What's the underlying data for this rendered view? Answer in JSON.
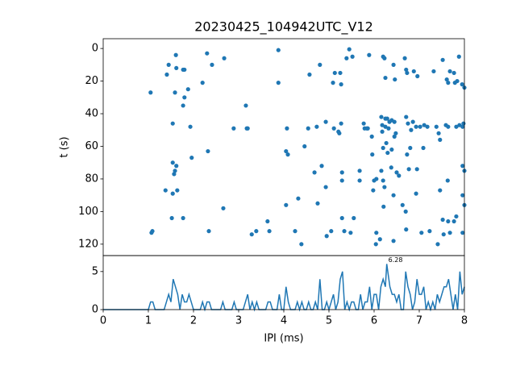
{
  "chart_data": [
    {
      "type": "scatter",
      "title": "20230425_104942UTC_V12",
      "ylabel": "t (s)",
      "color": "#1f77b4",
      "xlim": [
        0,
        8
      ],
      "ylim": [
        -6,
        127
      ],
      "y_inverted": true,
      "yticks": [
        0,
        20,
        40,
        60,
        80,
        100,
        120
      ],
      "x": [
        1.05,
        1.09,
        1.07,
        1.45,
        1.41,
        1.61,
        1.62,
        1.77,
        1.8,
        1.59,
        1.88,
        1.8,
        1.77,
        1.54,
        1.93,
        1.54,
        1.62,
        1.59,
        1.57,
        1.96,
        1.38,
        1.54,
        1.64,
        1.52,
        1.77,
        2.2,
        2.3,
        2.41,
        2.68,
        2.32,
        2.34,
        2.66,
        2.89,
        3.16,
        3.18,
        3.2,
        3.29,
        3.39,
        3.64,
        3.68,
        3.88,
        3.88,
        4.07,
        4.05,
        4.09,
        4.05,
        4.32,
        4.25,
        4.39,
        4.46,
        4.54,
        4.57,
        4.68,
        4.8,
        4.73,
        4.93,
        4.84,
        4.93,
        4.75,
        4.95,
        5.05,
        5.09,
        5.13,
        5.25,
        5.27,
        5.11,
        5.21,
        5.27,
        5.23,
        5.29,
        5.29,
        5.29,
        5.34,
        5.45,
        5.39,
        5.52,
        5.55,
        5.68,
        5.68,
        5.48,
        5.77,
        5.79,
        5.84,
        5.86,
        5.89,
        5.96,
        6.0,
        6.05,
        5.95,
        5.98,
        6.05,
        6.13,
        6.04,
        6.2,
        6.23,
        6.25,
        6.16,
        6.25,
        6.18,
        6.18,
        6.29,
        6.34,
        6.25,
        6.32,
        6.2,
        6.27,
        6.3,
        6.39,
        6.2,
        6.23,
        6.21,
        6.16,
        6.38,
        6.43,
        6.46,
        6.43,
        6.39,
        6.45,
        6.48,
        6.45,
        6.5,
        6.55,
        6.43,
        6.63,
        6.7,
        6.71,
        6.68,
        6.71,
        6.73,
        6.71,
        6.75,
        6.82,
        6.8,
        6.73,
        6.77,
        6.88,
        6.96,
        6.86,
        6.93,
        6.95,
        6.93,
        7.02,
        7.09,
        7.05,
        7.11,
        7.18,
        7.23,
        7.32,
        7.38,
        7.43,
        7.46,
        7.46,
        7.52,
        7.41,
        7.52,
        7.61,
        7.59,
        7.64,
        7.64,
        7.63,
        7.64,
        7.54,
        7.68,
        7.68,
        7.77,
        7.84,
        7.79,
        7.95,
        8.0,
        7.88,
        7.89,
        7.96,
        7.98,
        7.96,
        8.0,
        7.96,
        8.0,
        7.82,
        7.96,
        7.77,
        7.82
      ],
      "values": [
        27,
        112,
        113,
        10,
        16,
        4,
        12,
        13,
        13,
        27,
        25,
        30,
        35,
        46,
        48,
        70,
        72,
        75,
        77,
        67,
        87,
        89,
        87,
        104,
        104,
        21,
        3,
        10,
        6,
        63,
        112,
        98,
        49,
        35,
        49,
        49,
        114,
        112,
        106,
        112,
        1,
        21,
        49,
        63,
        65,
        96,
        92,
        112,
        120,
        60,
        49,
        16,
        76,
        10,
        48,
        45,
        72,
        85,
        95,
        115,
        112,
        21,
        15,
        15,
        22,
        49,
        51,
        46,
        52,
        76,
        81,
        104,
        112,
        0.5,
        6,
        5,
        104,
        75,
        81,
        113,
        46,
        49,
        49,
        49,
        4,
        65,
        81,
        80,
        54,
        87,
        113,
        117,
        120,
        5,
        6,
        18,
        42,
        43,
        47,
        51,
        43,
        45,
        48,
        49,
        61,
        58,
        64,
        62,
        81,
        85,
        97,
        75,
        73,
        118,
        19,
        10,
        44,
        45,
        52,
        54,
        76,
        78,
        90,
        96,
        100,
        111,
        6,
        13,
        15,
        42,
        46,
        50,
        61,
        65,
        74,
        14,
        17,
        45,
        48,
        74,
        89,
        48,
        61,
        113,
        47,
        48,
        112,
        14,
        48,
        52,
        56,
        87,
        105,
        120,
        7,
        19,
        47,
        48,
        21,
        81,
        106,
        114,
        113,
        14,
        15,
        20,
        21,
        22,
        24,
        5,
        47,
        48,
        46,
        72,
        75,
        90,
        96,
        103,
        113,
        106,
        48
      ]
    },
    {
      "type": "line",
      "xlabel": "IPI (ms)",
      "color": "#1f77b4",
      "annotation": "6.28",
      "xlim": [
        0,
        8
      ],
      "xticks": [
        0,
        1,
        2,
        3,
        4,
        5,
        6,
        7,
        8
      ],
      "ylim": [
        0,
        7.1
      ],
      "yticks": [
        0,
        5
      ],
      "x": [
        0,
        1.0,
        1.05,
        1.1,
        1.15,
        1.35,
        1.4,
        1.45,
        1.5,
        1.55,
        1.6,
        1.65,
        1.7,
        1.75,
        1.8,
        1.85,
        1.9,
        1.95,
        2.0,
        2.15,
        2.2,
        2.25,
        2.3,
        2.35,
        2.4,
        2.6,
        2.65,
        2.7,
        2.85,
        2.9,
        2.95,
        3.1,
        3.15,
        3.2,
        3.25,
        3.3,
        3.35,
        3.4,
        3.45,
        3.6,
        3.65,
        3.7,
        3.75,
        3.85,
        3.9,
        3.95,
        4.0,
        4.05,
        4.1,
        4.15,
        4.25,
        4.3,
        4.35,
        4.4,
        4.45,
        4.5,
        4.55,
        4.6,
        4.65,
        4.7,
        4.75,
        4.8,
        4.85,
        4.9,
        4.95,
        5.0,
        5.05,
        5.1,
        5.15,
        5.2,
        5.25,
        5.3,
        5.35,
        5.4,
        5.45,
        5.5,
        5.55,
        5.6,
        5.65,
        5.7,
        5.75,
        5.8,
        5.85,
        5.9,
        5.95,
        6.0,
        6.05,
        6.1,
        6.15,
        6.2,
        6.25,
        6.28,
        6.35,
        6.4,
        6.45,
        6.5,
        6.55,
        6.6,
        6.65,
        6.7,
        6.75,
        6.8,
        6.85,
        6.9,
        6.95,
        7.0,
        7.05,
        7.1,
        7.15,
        7.2,
        7.25,
        7.3,
        7.35,
        7.4,
        7.45,
        7.5,
        7.55,
        7.6,
        7.65,
        7.7,
        7.75,
        7.8,
        7.85,
        7.9,
        7.95,
        8.0
      ],
      "values": [
        0,
        0,
        1,
        1,
        0,
        0,
        1,
        2,
        1,
        4,
        3,
        2,
        0,
        2,
        1,
        1,
        2,
        1,
        0,
        0,
        1,
        0,
        1,
        1,
        0,
        0,
        1,
        0,
        0,
        1,
        0,
        0,
        1,
        2,
        0,
        1,
        0,
        1,
        0,
        0,
        1,
        1,
        0,
        0,
        2,
        0,
        0,
        3,
        1,
        0,
        0,
        1,
        0,
        1,
        0,
        0,
        1,
        0,
        0,
        1,
        0,
        4,
        0,
        0,
        1,
        0,
        1,
        2,
        0,
        1,
        4,
        5,
        0,
        1,
        0,
        1,
        1,
        0,
        0,
        2,
        0,
        1,
        1,
        3,
        0,
        2,
        2,
        0,
        3,
        4,
        3,
        6,
        3,
        2,
        2,
        1,
        2,
        0,
        0,
        5,
        3,
        2,
        0,
        1,
        4,
        2,
        2,
        3,
        0,
        1,
        0,
        1,
        0,
        2,
        1,
        2,
        3,
        3,
        4,
        2,
        0,
        2,
        0,
        5,
        2,
        3
      ]
    }
  ]
}
